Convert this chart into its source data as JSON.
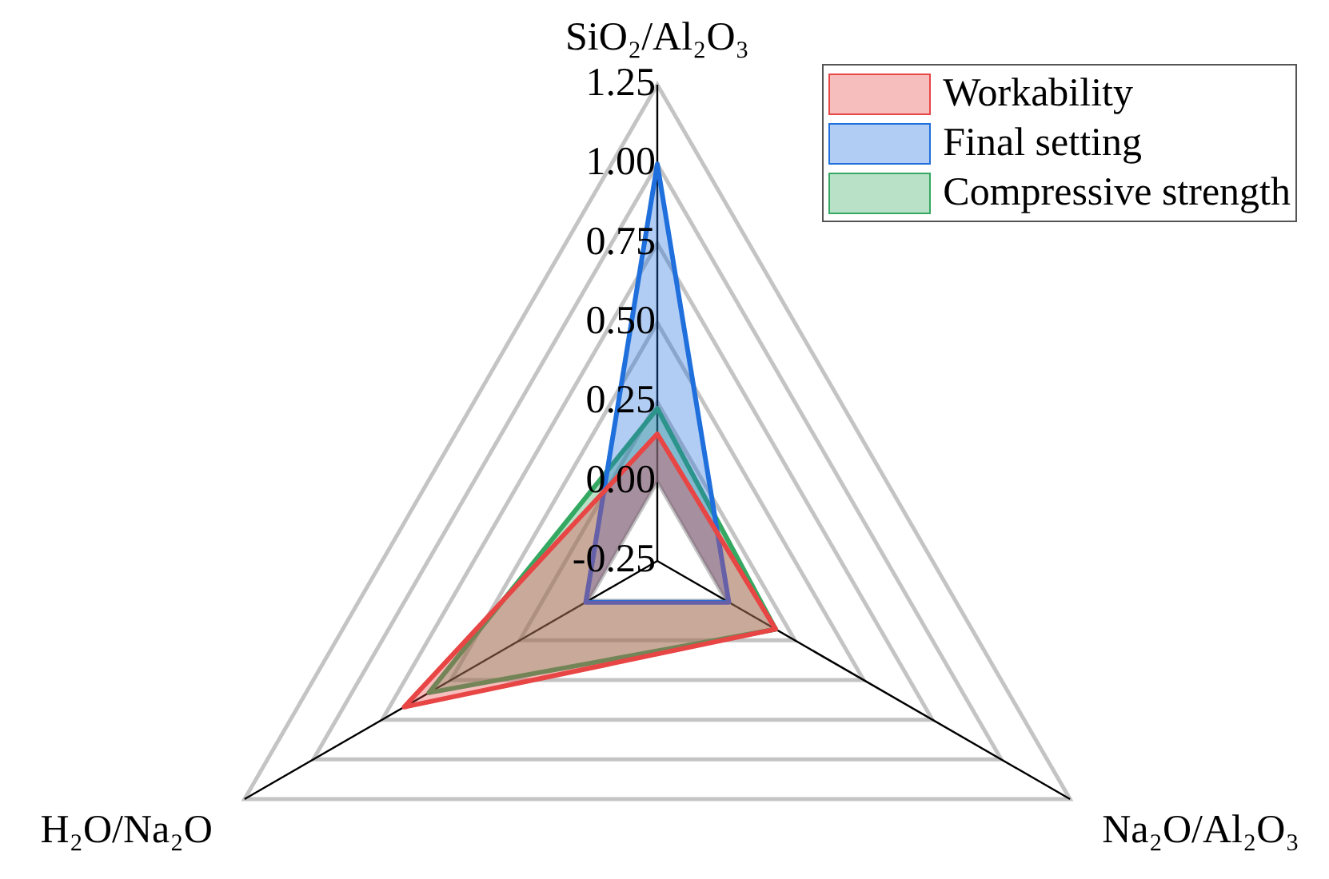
{
  "chart_data": {
    "type": "radar",
    "categories": [
      "SiO₂/Al₂O₃",
      "Na₂O/Al₂O₃",
      "H₂O/Na₂O"
    ],
    "series": [
      {
        "name": "Workability",
        "color": "#e84545",
        "values": [
          0.15,
          0.18,
          0.67
        ]
      },
      {
        "name": "Final setting",
        "color": "#1f6fdc",
        "values": [
          1.0,
          0.01,
          0.01
        ]
      },
      {
        "name": "Compressive strength",
        "color": "#35a862",
        "values": [
          0.23,
          0.18,
          0.58
        ]
      }
    ],
    "ylim": [
      -0.25,
      1.25
    ],
    "yticks": [
      -0.25,
      {
        "value": 0,
        "label": "0.00"
      },
      0.25,
      {
        "value": 0.5,
        "label": "0.50"
      },
      0.75,
      {
        "value": 1,
        "label": "1.00"
      },
      1.25
    ],
    "grid": true,
    "legend": "top right"
  }
}
